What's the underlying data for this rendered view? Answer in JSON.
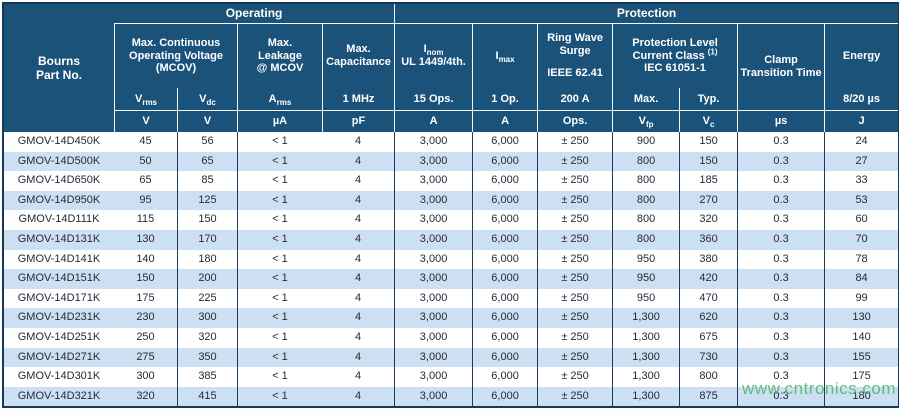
{
  "colors": {
    "header_bg": "#1a5279",
    "header_line": "#f2f7fb",
    "grid": "#1b3b5f",
    "outer_border": "#15385c",
    "row_alt": "#cde0f3",
    "text": "#252b33",
    "watermark": "#4db36b"
  },
  "watermark": "www.cntronics.com",
  "table": {
    "part_header_line1": "Bourns",
    "part_header_line2": "Part No.",
    "groups": {
      "operating": "Operating",
      "protection": "Protection"
    },
    "titles": {
      "mcov": "Max. Continuous Operating Voltage (MCOV)",
      "leakage": "Max. Leakage @ MCOV",
      "capacitance": "Max. Capacitance",
      "inom_line1": "I~nom~",
      "inom_line2": "UL 1449/4th.",
      "imax": "I~max~",
      "ringwave_line1": "Ring Wave Surge",
      "ringwave_line2": "IEEE 62.41",
      "protlevel_line1": "Protection Level Current Class ^(1)^",
      "protlevel_line2": "IEC 61051-1",
      "clamp": "Clamp Transition Time",
      "energy": "Energy"
    },
    "sublabels": [
      "V~rms~",
      "V~dc~",
      "A~rms~",
      "1 MHz",
      "15 Ops.",
      "1 Op.",
      "200 A",
      "Max.",
      "Typ.",
      "8/20 µs"
    ],
    "units": [
      "V",
      "V",
      "µA",
      "pF",
      "A",
      "A",
      "Ops.",
      "V~fp~",
      "V~c~",
      "µs",
      "J"
    ],
    "rows": [
      [
        "GMOV-14D450K",
        "45",
        "56",
        "< 1",
        "4",
        "3,000",
        "6,000",
        "± 250",
        "900",
        "150",
        "0.3",
        "24"
      ],
      [
        "GMOV-14D500K",
        "50",
        "65",
        "< 1",
        "4",
        "3,000",
        "6,000",
        "± 250",
        "800",
        "150",
        "0.3",
        "27"
      ],
      [
        "GMOV-14D650K",
        "65",
        "85",
        "< 1",
        "4",
        "3,000",
        "6,000",
        "± 250",
        "800",
        "185",
        "0.3",
        "33"
      ],
      [
        "GMOV-14D950K",
        "95",
        "125",
        "< 1",
        "4",
        "3,000",
        "6,000",
        "± 250",
        "800",
        "270",
        "0.3",
        "53"
      ],
      [
        "GMOV-14D111K",
        "115",
        "150",
        "< 1",
        "4",
        "3,000",
        "6,000",
        "± 250",
        "800",
        "320",
        "0.3",
        "60"
      ],
      [
        "GMOV-14D131K",
        "130",
        "170",
        "< 1",
        "4",
        "3,000",
        "6,000",
        "± 250",
        "800",
        "360",
        "0.3",
        "70"
      ],
      [
        "GMOV-14D141K",
        "140",
        "180",
        "< 1",
        "4",
        "3,000",
        "6,000",
        "± 250",
        "950",
        "380",
        "0.3",
        "78"
      ],
      [
        "GMOV-14D151K",
        "150",
        "200",
        "< 1",
        "4",
        "3,000",
        "6,000",
        "± 250",
        "950",
        "420",
        "0.3",
        "84"
      ],
      [
        "GMOV-14D171K",
        "175",
        "225",
        "< 1",
        "4",
        "3,000",
        "6,000",
        "± 250",
        "950",
        "470",
        "0.3",
        "99"
      ],
      [
        "GMOV-14D231K",
        "230",
        "300",
        "< 1",
        "4",
        "3,000",
        "6,000",
        "± 250",
        "1,300",
        "620",
        "0.3",
        "130"
      ],
      [
        "GMOV-14D251K",
        "250",
        "320",
        "< 1",
        "4",
        "3,000",
        "6,000",
        "± 250",
        "1,300",
        "675",
        "0.3",
        "140"
      ],
      [
        "GMOV-14D271K",
        "275",
        "350",
        "< 1",
        "4",
        "3,000",
        "6,000",
        "± 250",
        "1,300",
        "730",
        "0.3",
        "155"
      ],
      [
        "GMOV-14D301K",
        "300",
        "385",
        "< 1",
        "4",
        "3,000",
        "6,000",
        "± 250",
        "1,300",
        "800",
        "0.3",
        "175"
      ],
      [
        "GMOV-14D321K",
        "320",
        "415",
        "< 1",
        "4",
        "3,000",
        "6,000",
        "± 250",
        "1,300",
        "875",
        "0.3",
        "180"
      ]
    ]
  }
}
